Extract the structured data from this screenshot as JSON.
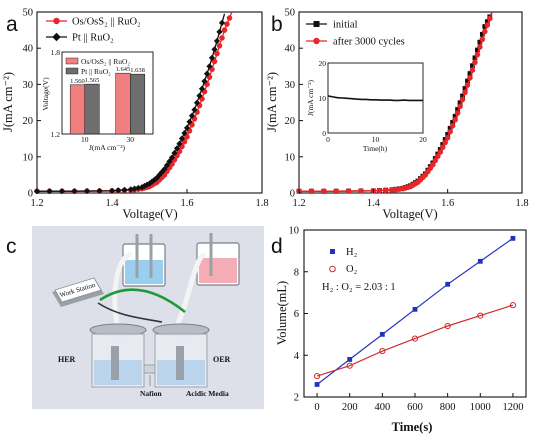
{
  "panels": {
    "a_letter": "a",
    "b_letter": "b",
    "c_letter": "c",
    "d_letter": "d"
  },
  "chart_data": [
    {
      "panel": "a",
      "type": "line",
      "xlabel": "Voltage(V)",
      "ylabel": "J(mA cm⁻²)",
      "xlim": [
        1.2,
        1.8
      ],
      "ylim": [
        0,
        50
      ],
      "xticks": [
        "1.2",
        "1.4",
        "1.6",
        "1.8"
      ],
      "yticks": [
        "0",
        "10",
        "20",
        "30",
        "40",
        "50"
      ],
      "legend_position": "top-left",
      "series": [
        {
          "name": "Os/OsS₂ || RuO₂",
          "color": "#e8262a",
          "marker": "circle",
          "x": [
            1.2,
            1.3,
            1.4,
            1.45,
            1.48,
            1.5,
            1.52,
            1.54,
            1.56,
            1.58,
            1.6,
            1.62,
            1.64,
            1.66,
            1.68,
            1.7,
            1.72
          ],
          "y": [
            0.5,
            0.5,
            0.6,
            0.8,
            1.2,
            1.8,
            3.0,
            5.0,
            8.0,
            11.5,
            15.5,
            20.5,
            26.0,
            32.0,
            38.5,
            45.0,
            50.0
          ]
        },
        {
          "name": "Pt || RuO₂",
          "color": "#111111",
          "marker": "diamond",
          "x": [
            1.2,
            1.3,
            1.4,
            1.45,
            1.48,
            1.5,
            1.52,
            1.54,
            1.56,
            1.58,
            1.6,
            1.62,
            1.64,
            1.66,
            1.68,
            1.7
          ],
          "y": [
            0.5,
            0.5,
            0.6,
            1.0,
            1.6,
            2.6,
            4.2,
            6.6,
            9.8,
            13.6,
            18.0,
            23.0,
            28.8,
            35.0,
            42.0,
            49.5
          ]
        }
      ],
      "inset": {
        "type": "bar",
        "ylabel": "Voltage(V)",
        "xlabel": "J(mA cm⁻²)",
        "ylim": [
          1.2,
          1.8
        ],
        "yticks": [
          "1.2",
          "1.8"
        ],
        "categories": [
          "10",
          "30"
        ],
        "series": [
          {
            "name": "Os/OsS₂ || RuO₂",
            "color": "#f07f80",
            "values": [
              1.56,
              1.645
            ],
            "labels": [
              "1.560",
              "1.645"
            ]
          },
          {
            "name": "Pt || RuO₂",
            "color": "#6e6e6e",
            "values": [
              1.565,
              1.638
            ],
            "labels": [
              "1.565",
              "1.638"
            ]
          }
        ]
      }
    },
    {
      "panel": "b",
      "type": "line",
      "xlabel": "Voltage(V)",
      "ylabel": "J(mA cm⁻²)",
      "xlim": [
        1.2,
        1.8
      ],
      "ylim": [
        0,
        50
      ],
      "xticks": [
        "1.2",
        "1.4",
        "1.6",
        "1.8"
      ],
      "yticks": [
        "0",
        "10",
        "20",
        "30",
        "40",
        "50"
      ],
      "legend_position": "top-left",
      "series": [
        {
          "name": "initial",
          "color": "#111111",
          "marker": "square",
          "x": [
            1.2,
            1.3,
            1.4,
            1.45,
            1.48,
            1.5,
            1.52,
            1.54,
            1.56,
            1.58,
            1.6,
            1.62,
            1.64,
            1.66,
            1.68,
            1.7,
            1.72
          ],
          "y": [
            0.5,
            0.5,
            0.6,
            0.9,
            1.3,
            2.0,
            3.3,
            5.3,
            8.3,
            12.0,
            16.2,
            21.2,
            26.8,
            33.0,
            39.5,
            46.0,
            50.0
          ]
        },
        {
          "name": "after 3000 cycles",
          "color": "#e8262a",
          "marker": "circle",
          "x": [
            1.2,
            1.3,
            1.4,
            1.45,
            1.48,
            1.5,
            1.52,
            1.54,
            1.56,
            1.58,
            1.6,
            1.62,
            1.64,
            1.66,
            1.68,
            1.7,
            1.72
          ],
          "y": [
            0.5,
            0.5,
            0.6,
            0.8,
            1.2,
            1.8,
            3.0,
            5.0,
            7.8,
            11.3,
            15.3,
            20.2,
            25.8,
            31.8,
            38.2,
            44.6,
            50.0
          ]
        }
      ],
      "inset": {
        "type": "line",
        "ylabel": "J(mA cm⁻²)",
        "xlabel": "Time(h)",
        "xlim": [
          0,
          20
        ],
        "ylim": [
          0,
          20
        ],
        "xticks": [
          "0",
          "10",
          "20"
        ],
        "yticks": [
          "0",
          "10",
          "20"
        ],
        "x": [
          0,
          1,
          2,
          3,
          4,
          5,
          6,
          7,
          8,
          9,
          10,
          11,
          12,
          13,
          14,
          15,
          16,
          17,
          18,
          19,
          20
        ],
        "y": [
          10.6,
          10.3,
          10.1,
          10.0,
          9.9,
          9.8,
          9.7,
          9.6,
          9.6,
          9.5,
          9.5,
          9.4,
          9.4,
          9.4,
          9.3,
          9.3,
          9.4,
          9.3,
          9.3,
          9.3,
          9.3
        ]
      }
    },
    {
      "panel": "d",
      "type": "scatter",
      "xlabel": "Time(s)",
      "ylabel": "Volume(mL)",
      "xlim": [
        -80,
        1280
      ],
      "ylim": [
        2,
        10
      ],
      "xticks": [
        "0",
        "200",
        "400",
        "600",
        "800",
        "1000",
        "1200"
      ],
      "yticks": [
        "2",
        "4",
        "6",
        "8",
        "10"
      ],
      "annotation": "H₂ : O₂ = 2.03 : 1",
      "legend_position": "top-left",
      "series": [
        {
          "name": "H₂",
          "color": "#2233bb",
          "marker": "square",
          "x": [
            0,
            200,
            400,
            600,
            800,
            1000,
            1200
          ],
          "y": [
            2.6,
            3.8,
            5.0,
            6.2,
            7.4,
            8.5,
            9.6
          ]
        },
        {
          "name": "O₂",
          "color": "#d42a2a",
          "marker": "circle",
          "x": [
            0,
            200,
            400,
            600,
            800,
            1000,
            1200
          ],
          "y": [
            3.0,
            3.5,
            4.2,
            4.8,
            5.4,
            5.9,
            6.4
          ]
        }
      ]
    }
  ],
  "illustration_c": {
    "labels": {
      "her": "HER",
      "oer": "OER",
      "nafion": "Nafion",
      "media": "Acidic Media",
      "power": "Work Station"
    },
    "colors": {
      "hydrogen_tint": "#8ec9ec",
      "oxygen_tint": "#f4a4ad",
      "background": "#dde0e8"
    }
  }
}
